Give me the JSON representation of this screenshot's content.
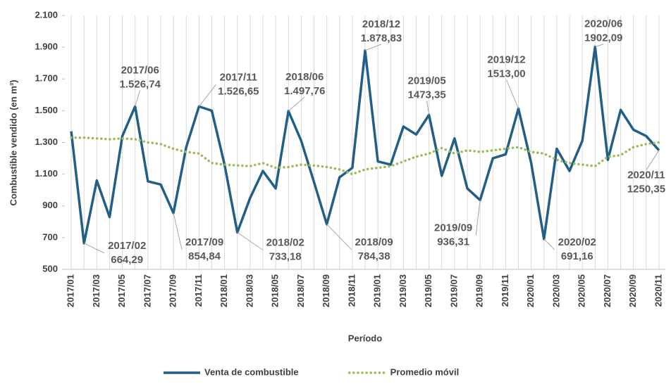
{
  "chart_data": {
    "type": "line",
    "y_label": "Combustible vendido (en m³)",
    "x_label": "Período",
    "categories": [
      "2017/01",
      null,
      "2017/03",
      null,
      "2017/05",
      null,
      "2017/07",
      null,
      "2017/09",
      null,
      "2017/11",
      null,
      "2018/01",
      null,
      "2018/03",
      null,
      "2018/05",
      null,
      "2018/07",
      null,
      "2018/09",
      null,
      "2018/11",
      null,
      "2019/01",
      null,
      "2019/03",
      null,
      "2019/05",
      null,
      "2019/07",
      null,
      "2019/09",
      null,
      "2019/11",
      null,
      "2020/01",
      null,
      "2020/03",
      null,
      "2020/05",
      null,
      "2020/07",
      null,
      "2020/09",
      null,
      "2020/11"
    ],
    "series": [
      {
        "name": "Venta de combustible",
        "color": "#215f86",
        "style": "solid",
        "values": [
          1370,
          664.29,
          1060,
          830,
          1340,
          1526.74,
          1055,
          1035,
          854.84,
          1270,
          1526.65,
          1500,
          1160,
          733.18,
          950,
          1120,
          1010,
          1497.76,
          1310,
          1050,
          784.38,
          1080,
          1140,
          1878.83,
          1180,
          1160,
          1400,
          1350,
          1473.35,
          1090,
          1325,
          1010,
          936.31,
          1200,
          1225,
          1513,
          1170,
          691.16,
          1260,
          1120,
          1310,
          1902.09,
          1190,
          1505,
          1380,
          1340,
          1250.35
        ],
        "value_labels": [
          null,
          "664,29",
          null,
          null,
          null,
          "1.526,74",
          null,
          null,
          "854,84",
          null,
          "1.526,65",
          null,
          null,
          "733,18",
          null,
          null,
          null,
          "1.497,76",
          null,
          null,
          "784,38",
          null,
          null,
          "1.878,83",
          null,
          null,
          null,
          null,
          "1473,35",
          null,
          null,
          null,
          "936,31",
          null,
          null,
          "1513,00",
          null,
          "691,16",
          null,
          null,
          null,
          "1902,09",
          null,
          null,
          null,
          null,
          "1250,35"
        ],
        "period_labels": [
          null,
          "2017/02",
          null,
          null,
          null,
          "2017/06",
          null,
          null,
          "2017/09",
          null,
          "2017/11",
          null,
          null,
          "2018/02",
          null,
          null,
          null,
          "2018/06",
          null,
          null,
          "2018/09",
          null,
          null,
          "2018/12",
          null,
          null,
          null,
          null,
          "2019/05",
          null,
          null,
          null,
          "2019/09",
          null,
          null,
          "2019/12",
          null,
          "2020/02",
          null,
          null,
          null,
          "2020/06",
          null,
          null,
          null,
          null,
          "2020/11"
        ]
      },
      {
        "name": "Promedio móvil",
        "color": "#9bbb59",
        "style": "dotted",
        "values": [
          1330,
          1330,
          1325,
          1320,
          1325,
          1320,
          1300,
          1290,
          1260,
          1240,
          1230,
          1170,
          1160,
          1155,
          1150,
          1170,
          1140,
          1145,
          1160,
          1155,
          1145,
          1130,
          1100,
          1130,
          1140,
          1150,
          1180,
          1210,
          1230,
          1265,
          1230,
          1250,
          1240,
          1250,
          1260,
          1270,
          1240,
          1230,
          1190,
          1170,
          1160,
          1150,
          1210,
          1220,
          1270,
          1290,
          1300
        ]
      }
    ],
    "ylim": [
      500,
      2100
    ],
    "yticks": [
      500,
      700,
      900,
      {
        "value": 1100,
        "label": "1.100"
      },
      {
        "value": 1300,
        "label": "1.300"
      },
      {
        "value": 1500,
        "label": "1.500"
      },
      {
        "value": 1700,
        "label": "1.700"
      },
      {
        "value": 1900,
        "label": "1.900"
      },
      {
        "value": 2100,
        "label": "2.100"
      }
    ],
    "grid": true,
    "legend": "bottom"
  }
}
